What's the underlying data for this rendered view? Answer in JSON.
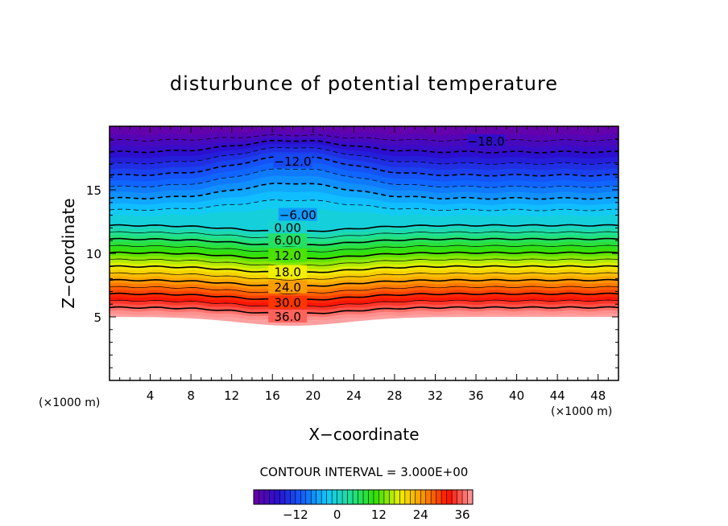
{
  "chart_data": {
    "type": "contour",
    "title": "disturbunce of potential temperature",
    "xlabel": "X−coordinate",
    "ylabel": "Z−coordinate",
    "x_unit": "(×1000 m)",
    "y_unit": "(×1000 m)",
    "xlim": [
      0,
      50
    ],
    "ylim": [
      0,
      20
    ],
    "x_ticks": [
      4,
      8,
      12,
      16,
      20,
      24,
      28,
      32,
      36,
      40,
      44,
      48
    ],
    "y_ticks": [
      5,
      10,
      15
    ],
    "contour_interval_label": "CONTOUR INTERVAL = 3.000E+00",
    "contour_interval": 3.0,
    "value_range": [
      -24,
      39
    ],
    "terrain_top_z": 5.0,
    "ridge_center_x": 18,
    "contour_labels": [
      {
        "text": "−18.0",
        "value": -18,
        "x": 37,
        "z": 18.8
      },
      {
        "text": "−12.0",
        "value": -12,
        "x": 18,
        "z": 17.2
      },
      {
        "text": "−6.00",
        "value": -6,
        "x": 18.5,
        "z": 13.0
      },
      {
        "text": "0.00",
        "value": 0,
        "x": 17.5,
        "z": 12.0
      },
      {
        "text": "6.00",
        "value": 6,
        "x": 17.5,
        "z": 11.0
      },
      {
        "text": "12.0",
        "value": 12,
        "x": 17.5,
        "z": 9.8
      },
      {
        "text": "18.0",
        "value": 18,
        "x": 17.5,
        "z": 8.5
      },
      {
        "text": "24.0",
        "value": 24,
        "x": 17.5,
        "z": 7.3
      },
      {
        "text": "30.0",
        "value": 30,
        "x": 17.5,
        "z": 6.1
      },
      {
        "text": "36.0",
        "value": 36,
        "x": 17.5,
        "z": 5.0
      }
    ],
    "colorbar": {
      "ticks": [
        {
          "label": "−12",
          "value": -12
        },
        {
          "label": "0",
          "value": 0
        },
        {
          "label": "12",
          "value": 12
        },
        {
          "label": "24",
          "value": 24
        },
        {
          "label": "36",
          "value": 36
        }
      ],
      "colors": [
        "#6a00a8",
        "#2a10d0",
        "#1060ff",
        "#10c8ff",
        "#20e090",
        "#30e000",
        "#f0f000",
        "#ff9000",
        "#ff1000",
        "#ffa0a0"
      ]
    }
  }
}
